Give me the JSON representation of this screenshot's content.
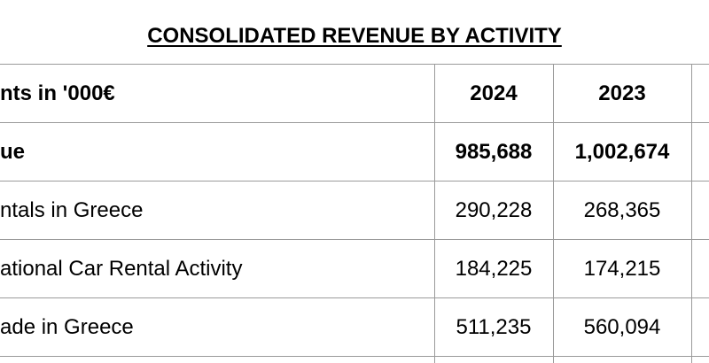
{
  "title": "CONSOLIDATED REVENUE BY ACTIVITY",
  "header": {
    "label": "nts in '000€",
    "col_2024": "2024",
    "col_2023": "2023"
  },
  "rows": [
    {
      "label": "ue",
      "v2024": "985,688",
      "v2023": "1,002,674",
      "bold": true
    },
    {
      "label": "ntals in Greece",
      "v2024": "290,228",
      "v2023": "268,365",
      "bold": false
    },
    {
      "label": "ational Car Rental Activity",
      "v2024": "184,225",
      "v2023": "174,215",
      "bold": false
    },
    {
      "label": "ade in Greece",
      "v2024": "511,235",
      "v2023": "560,094",
      "bold": false
    }
  ]
}
